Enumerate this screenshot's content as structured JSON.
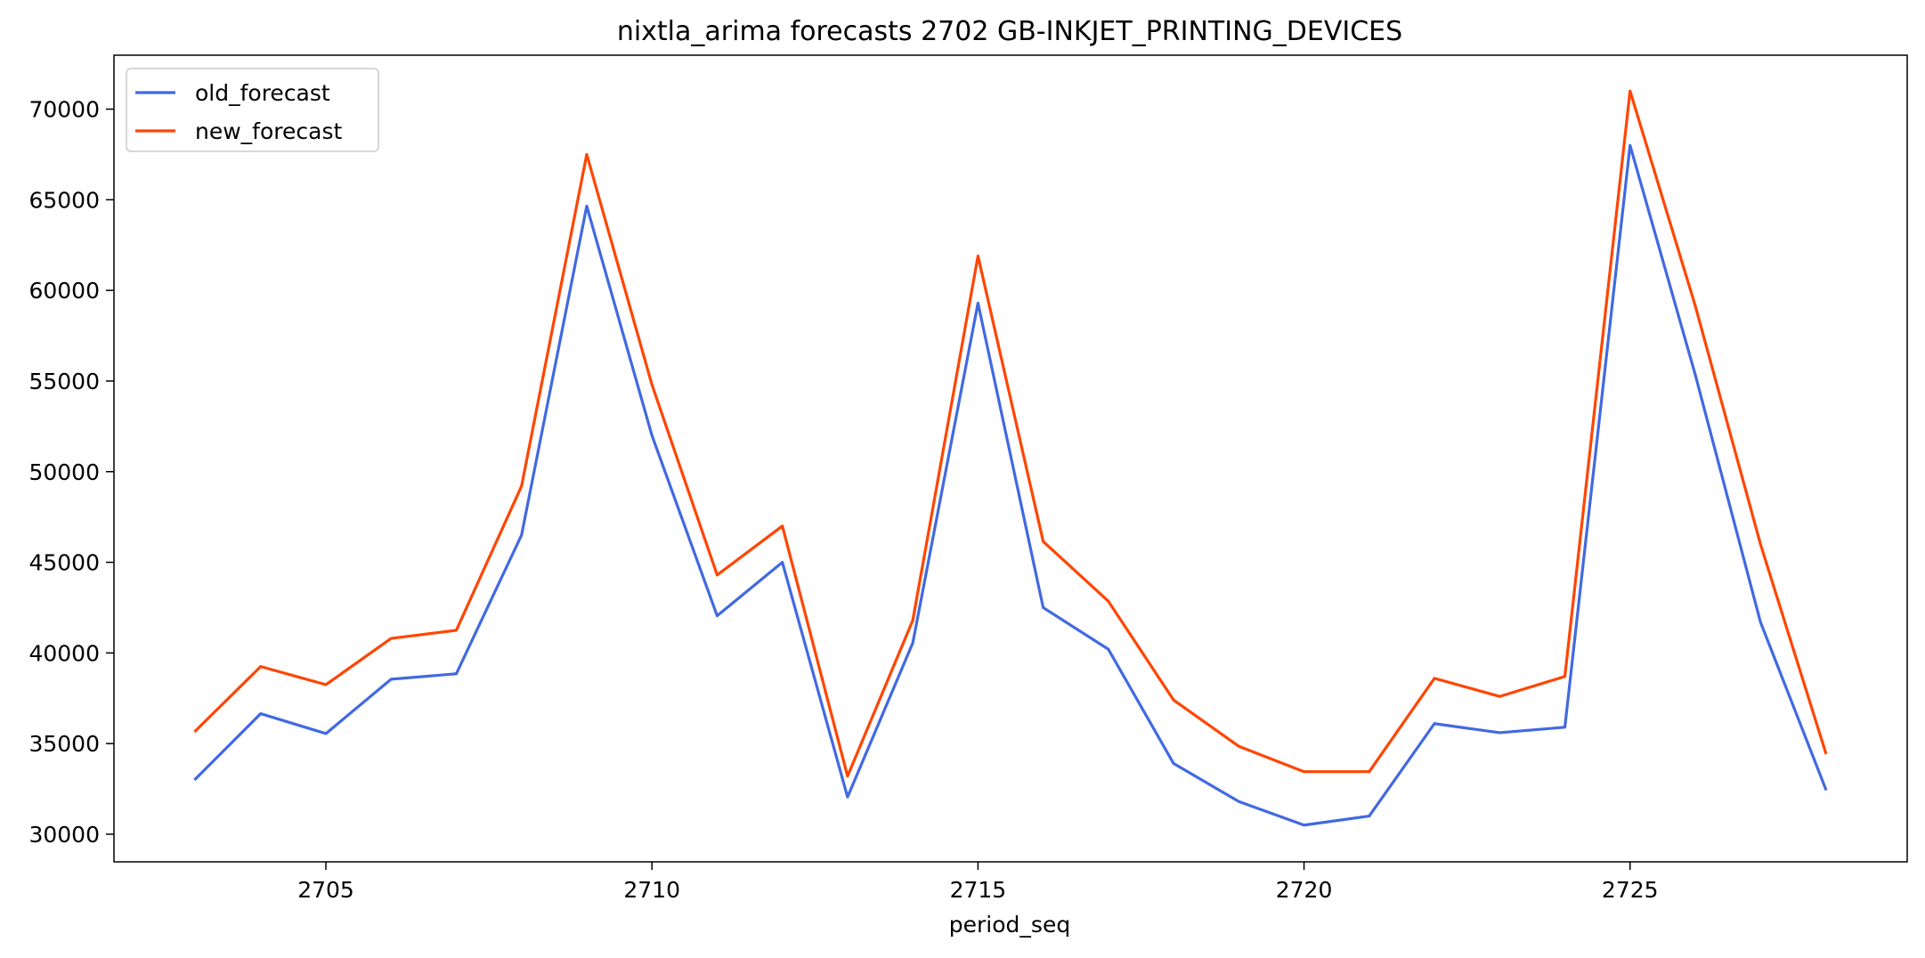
{
  "chart_data": {
    "type": "line",
    "title": "nixtla_arima forecasts 2702 GB-INKJET_PRINTING_DEVICES",
    "xlabel": "period_seq",
    "ylabel": "",
    "x": [
      2703,
      2704,
      2705,
      2706,
      2707,
      2708,
      2709,
      2710,
      2711,
      2712,
      2713,
      2714,
      2715,
      2716,
      2717,
      2718,
      2719,
      2720,
      2721,
      2722,
      2723,
      2724,
      2725,
      2726,
      2727,
      2728
    ],
    "series": [
      {
        "name": "old_forecast",
        "color": "#4169e1",
        "values": [
          33050,
          36650,
          35550,
          38550,
          38850,
          46500,
          64650,
          52000,
          42050,
          45000,
          32050,
          40550,
          59300,
          42500,
          40200,
          33900,
          31800,
          30500,
          31000,
          36100,
          35600,
          35900,
          68000,
          55350,
          41700,
          32500
        ]
      },
      {
        "name": "new_forecast",
        "color": "#ff4500",
        "values": [
          35700,
          39250,
          38250,
          40800,
          41250,
          49200,
          67500,
          54800,
          44300,
          47000,
          33200,
          41800,
          61900,
          46150,
          42850,
          37400,
          34850,
          33450,
          33450,
          38600,
          37600,
          38700,
          71000,
          59150,
          46000,
          34500
        ]
      }
    ],
    "xlim": [
      2701.75,
      2729.25
    ],
    "ylim": [
      28475,
      72975
    ],
    "x_ticks": [
      2705,
      2710,
      2715,
      2720,
      2725
    ],
    "y_ticks": [
      30000,
      35000,
      40000,
      45000,
      50000,
      55000,
      60000,
      65000,
      70000
    ],
    "grid": false,
    "legend_position": "upper-left"
  }
}
